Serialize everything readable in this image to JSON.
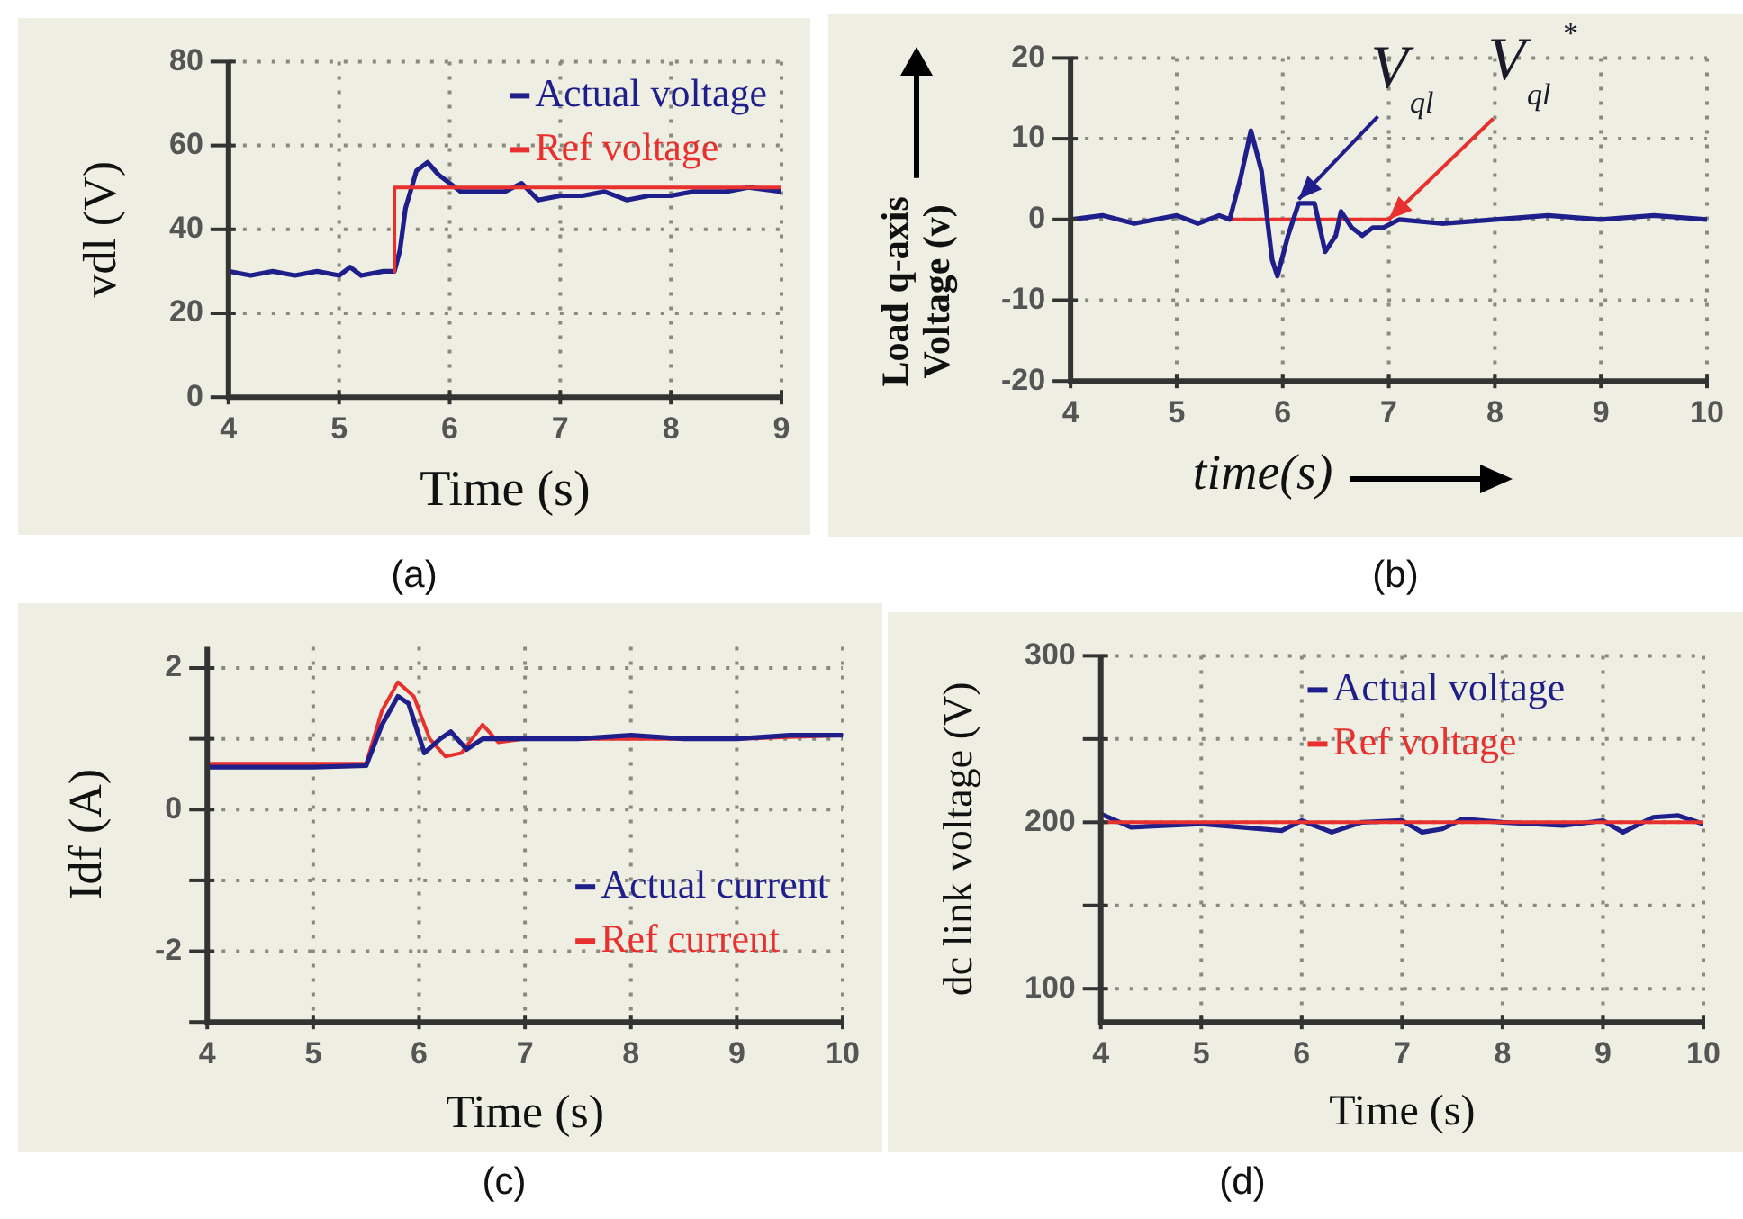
{
  "chart_data": [
    {
      "type": "line",
      "title": "(a)",
      "xlabel": "Time (s)",
      "ylabel": "vdl (V)",
      "xlim": [
        4,
        9
      ],
      "ylim": [
        0,
        80
      ],
      "xticks": [
        4,
        5,
        6,
        7,
        8,
        9
      ],
      "yticks": [
        0,
        20,
        40,
        60,
        80
      ],
      "grid": true,
      "legend": "top right",
      "series": [
        {
          "name": "Actual voltage",
          "color": "#1f1f8c",
          "x": [
            4,
            4.2,
            4.4,
            4.6,
            4.8,
            5,
            5.1,
            5.2,
            5.4,
            5.5,
            5.55,
            5.6,
            5.7,
            5.8,
            5.9,
            6,
            6.1,
            6.3,
            6.5,
            6.65,
            6.8,
            7,
            7.2,
            7.4,
            7.6,
            7.8,
            8,
            8.2,
            8.5,
            8.7,
            9
          ],
          "values": [
            30,
            29,
            30,
            29,
            30,
            29,
            31,
            29,
            30,
            30,
            35,
            45,
            54,
            56,
            53,
            51,
            49,
            49,
            49,
            51,
            47,
            48,
            48,
            49,
            47,
            48,
            48,
            49,
            49,
            50,
            49
          ]
        },
        {
          "name": "Ref voltage",
          "color": "#e8302f",
          "x": [
            5.5,
            5.5,
            9
          ],
          "values": [
            30,
            50,
            50
          ]
        }
      ]
    },
    {
      "type": "line",
      "title": "(b)",
      "xlabel": "time(s)",
      "ylabel": "Load q-axis Voltage (v)",
      "xlim": [
        4,
        10
      ],
      "ylim": [
        -20,
        20
      ],
      "xticks": [
        4,
        5,
        6,
        7,
        8,
        9,
        10
      ],
      "yticks": [
        -20,
        -10,
        0,
        10,
        20
      ],
      "grid": true,
      "annotations": [
        {
          "text": "V$_{ql}$",
          "x": 6.15,
          "y": 2.5
        },
        {
          "text": "V$_{ql}$$^{*}$",
          "x": 7,
          "y": 0
        }
      ],
      "series": [
        {
          "color": "#1f1f8c",
          "x": [
            4,
            4.3,
            4.6,
            5,
            5.2,
            5.4,
            5.5,
            5.6,
            5.7,
            5.8,
            5.9,
            5.95,
            6.05,
            6.15,
            6.3,
            6.4,
            6.5,
            6.55,
            6.65,
            6.75,
            6.85,
            6.95,
            7.1,
            7.5,
            8,
            8.5,
            9,
            9.5,
            10
          ],
          "values": [
            0,
            0.5,
            -0.5,
            0.5,
            -0.5,
            0.5,
            0,
            5,
            11,
            6,
            -5,
            -7,
            -2,
            2,
            2,
            -4,
            -2,
            1,
            -1,
            -2,
            -1,
            -1,
            0,
            -0.5,
            0,
            0.5,
            0,
            0.5,
            0
          ]
        },
        {
          "color": "#e8302f",
          "x": [
            5.5,
            7
          ],
          "values": [
            0,
            0
          ]
        }
      ]
    },
    {
      "type": "line",
      "title": "(c)",
      "xlabel": "Time (s)",
      "ylabel": "Idf (A)",
      "xlim": [
        4,
        10
      ],
      "ylim": [
        -3,
        2.3
      ],
      "xticks": [
        4,
        5,
        6,
        7,
        8,
        9,
        10
      ],
      "yticks": [
        {
          "value": -3,
          "label": null
        },
        -2,
        {
          "value": -1,
          "label": null
        },
        0,
        {
          "value": 1,
          "label": null
        },
        2
      ],
      "grid": true,
      "legend": "bottom right",
      "series": [
        {
          "name": "Actual current",
          "color": "#1f1f8c",
          "x": [
            4,
            4.5,
            5,
            5.5,
            5.65,
            5.8,
            5.9,
            6.05,
            6.2,
            6.3,
            6.45,
            6.6,
            7,
            7.5,
            8,
            8.5,
            9,
            9.5,
            10
          ],
          "values": [
            0.6,
            0.6,
            0.6,
            0.62,
            1.2,
            1.6,
            1.5,
            0.8,
            1,
            1.1,
            0.85,
            1,
            1,
            1,
            1.05,
            1,
            1,
            1.05,
            1.05
          ]
        },
        {
          "name": "Ref current",
          "color": "#e8302f",
          "x": [
            4,
            5.5,
            5.65,
            5.8,
            5.95,
            6.1,
            6.25,
            6.4,
            6.6,
            6.75,
            7,
            8,
            9,
            10
          ],
          "values": [
            0.65,
            0.65,
            1.4,
            1.8,
            1.6,
            1,
            0.75,
            0.8,
            1.2,
            0.95,
            1,
            1,
            1,
            1.05
          ]
        }
      ]
    },
    {
      "type": "line",
      "title": "(d)",
      "xlabel": "Time (s)",
      "ylabel": "dc link voltage (V)",
      "xlim": [
        4,
        10
      ],
      "ylim": [
        80,
        300
      ],
      "xticks": [
        4,
        5,
        6,
        7,
        8,
        9,
        10
      ],
      "yticks": [
        100,
        {
          "value": 150,
          "label": null
        },
        200,
        {
          "value": 250,
          "label": null
        },
        300
      ],
      "grid": true,
      "legend": "top",
      "series": [
        {
          "name": "Actual voltage",
          "color": "#1f1f8c",
          "x": [
            4,
            4.3,
            5,
            5.8,
            6,
            6.3,
            6.6,
            7,
            7.2,
            7.4,
            7.6,
            8,
            8.6,
            9,
            9.2,
            9.5,
            9.75,
            10
          ],
          "values": [
            205,
            197,
            199,
            195,
            201,
            194,
            200,
            201,
            194,
            196,
            202,
            200,
            198,
            201,
            194,
            203,
            204,
            199
          ]
        },
        {
          "name": "Ref voltage",
          "color": "#e8302f",
          "x": [
            4,
            10
          ],
          "values": [
            200,
            200
          ]
        }
      ]
    }
  ]
}
